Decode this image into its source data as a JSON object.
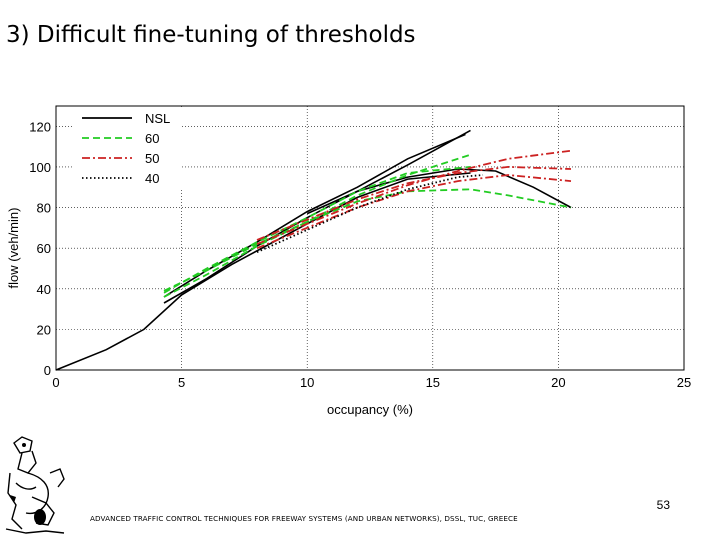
{
  "slide": {
    "title": "3) Difficult fine-tuning of thresholds",
    "page_number": "53",
    "footer": "ADVANCED TRAFFIC CONTROL TECHNIQUES FOR FREEWAY SYSTEMS (AND URBAN NETWORKS), DSSL, TUC, GREECE"
  },
  "colors": {
    "NSL": "#000000",
    "60": "#22cc22",
    "50": "#cc2222",
    "40": "#000000"
  },
  "chart_data": {
    "type": "line",
    "title": "",
    "xlabel": "occupancy (%)",
    "ylabel": "flow (veh/min)",
    "xlim": [
      0,
      25
    ],
    "ylim": [
      0,
      130
    ],
    "xticks": [
      0,
      5,
      10,
      15,
      20,
      25
    ],
    "yticks": [
      0,
      20,
      40,
      60,
      80,
      100,
      120
    ],
    "grid": true,
    "legend_position": "top-left",
    "series": [
      {
        "name": "NSL",
        "style": "solid",
        "lines": [
          [
            [
              0,
              0
            ],
            [
              2,
              10
            ],
            [
              3.5,
              20
            ],
            [
              5,
              37
            ],
            [
              7,
              52
            ],
            [
              10,
              72
            ],
            [
              12,
              85
            ],
            [
              14,
              94
            ],
            [
              16.5,
              97
            ]
          ],
          [
            [
              4.3,
              33
            ],
            [
              6,
              45
            ],
            [
              8,
              61
            ],
            [
              10,
              75
            ],
            [
              12,
              88
            ],
            [
              14,
              101
            ],
            [
              16.5,
              118
            ]
          ],
          [
            [
              4.3,
              36
            ],
            [
              6,
              49
            ],
            [
              8,
              63
            ],
            [
              10,
              78
            ],
            [
              12,
              90
            ],
            [
              14,
              104
            ],
            [
              16.3,
              116
            ]
          ],
          [
            [
              10,
              77
            ],
            [
              12,
              88
            ],
            [
              14,
              95
            ],
            [
              16,
              99
            ],
            [
              17.5,
              98
            ],
            [
              19,
              90
            ],
            [
              20.5,
              80
            ]
          ]
        ]
      },
      {
        "name": "60",
        "style": "dashed",
        "lines": [
          [
            [
              4.3,
              39
            ],
            [
              6,
              49
            ],
            [
              8,
              62
            ],
            [
              10,
              73
            ],
            [
              12,
              83
            ],
            [
              14,
              88
            ],
            [
              16.5,
              89
            ],
            [
              18,
              86
            ],
            [
              20.5,
              80
            ]
          ],
          [
            [
              4.3,
              36
            ],
            [
              6,
              47
            ],
            [
              8,
              61
            ],
            [
              10,
              73
            ],
            [
              12,
              86
            ],
            [
              14,
              96
            ],
            [
              16.5,
              106
            ]
          ],
          [
            [
              4.3,
              38
            ],
            [
              6,
              50
            ],
            [
              8,
              63
            ],
            [
              10,
              75
            ],
            [
              12,
              88
            ],
            [
              14,
              97
            ],
            [
              16.5,
              100
            ]
          ]
        ]
      },
      {
        "name": "50",
        "style": "dashdot",
        "lines": [
          [
            [
              8,
              62
            ],
            [
              10,
              72
            ],
            [
              12,
              82
            ],
            [
              14,
              91
            ],
            [
              16,
              98
            ],
            [
              18,
              104
            ],
            [
              20.5,
              108
            ]
          ],
          [
            [
              8,
              64
            ],
            [
              10,
              74
            ],
            [
              12,
              84
            ],
            [
              14,
              92
            ],
            [
              16,
              97
            ],
            [
              18,
              100
            ],
            [
              20.5,
              99
            ]
          ],
          [
            [
              8,
              60
            ],
            [
              10,
              70
            ],
            [
              12,
              80
            ],
            [
              14,
              88
            ],
            [
              16,
              93
            ],
            [
              18,
              96
            ],
            [
              20.5,
              93
            ]
          ]
        ]
      },
      {
        "name": "40",
        "style": "dotted",
        "lines": [
          [
            [
              8,
              58
            ],
            [
              10,
              69
            ],
            [
              12,
              80
            ],
            [
              14,
              89
            ],
            [
              16,
              95
            ],
            [
              17,
              96
            ]
          ]
        ]
      }
    ]
  }
}
